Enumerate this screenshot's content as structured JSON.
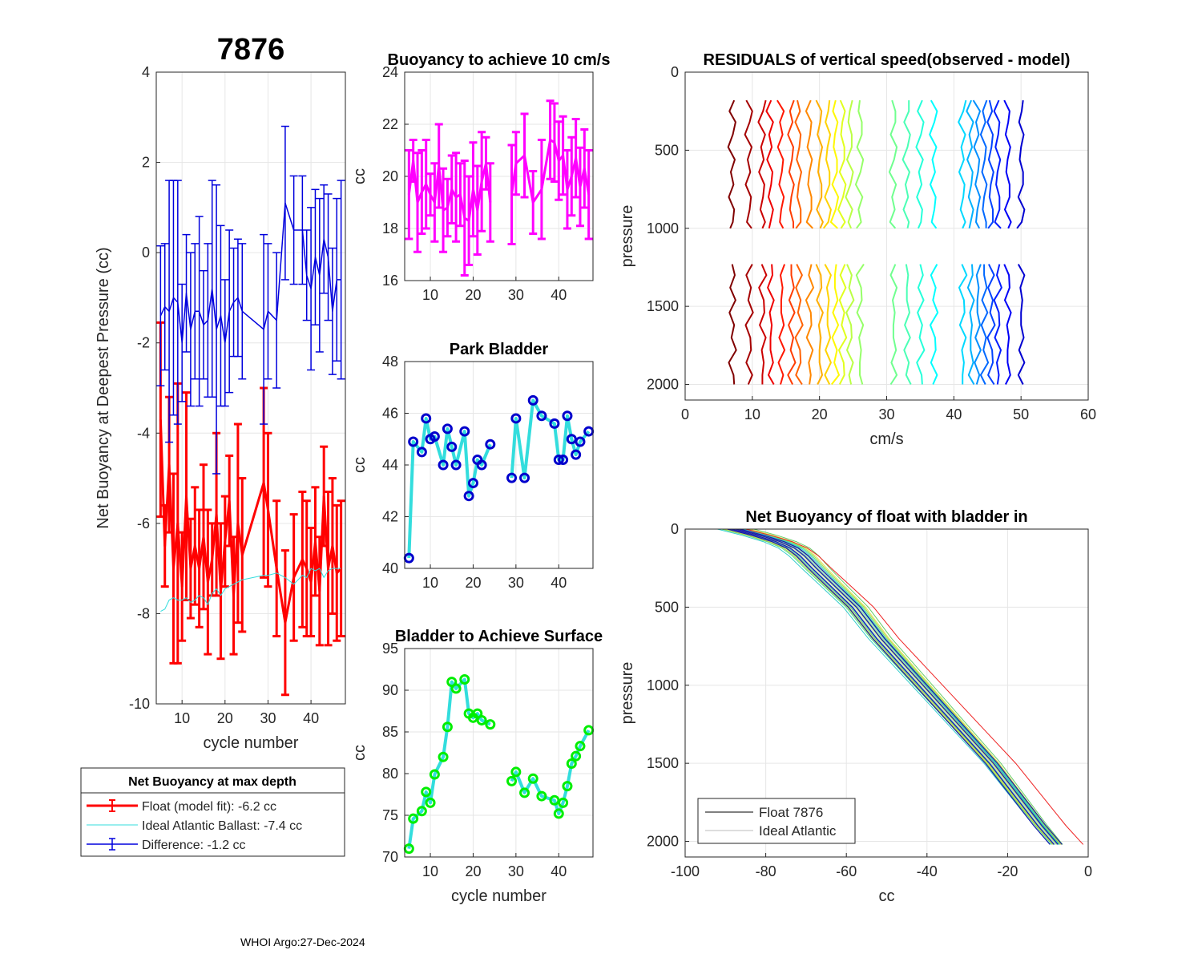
{
  "figure_title": "7876",
  "footer": "WHOI Argo:27-Dec-2024",
  "legend_box": {
    "title": "Net Buoyancy at max depth",
    "entries": [
      {
        "label": "Float (model fit):  -6.2 cc",
        "color": "#ff0000"
      },
      {
        "label": "Ideal Atlantic Ballast:  -7.4 cc",
        "color": "#33dddd"
      },
      {
        "label": "Difference:  -1.2 cc",
        "color": "#0000dd"
      }
    ]
  },
  "colors": {
    "red": "#ff0000",
    "blue": "#0000dd",
    "cyan": "#33dddd",
    "magenta": "#ff00ff",
    "green": "#00ee00",
    "navy": "#0000cc",
    "grid": "#e6e6e6"
  },
  "chart_data": [
    {
      "id": "net-buoyancy",
      "type": "line",
      "title": "",
      "xlabel": "cycle number",
      "ylabel": "Net Buoyancy at Deepest Pressure (cc)",
      "xlim": [
        4,
        48
      ],
      "ylim": [
        -10,
        4
      ],
      "xticks": [
        10,
        20,
        30,
        40
      ],
      "yticks": [
        -10,
        -8,
        -6,
        -4,
        -2,
        0,
        2,
        4
      ],
      "x": [
        5,
        6,
        7,
        8,
        9,
        10,
        11,
        12,
        13,
        14,
        15,
        16,
        17,
        18,
        19,
        20,
        21,
        22,
        23,
        24,
        29,
        30,
        32,
        34,
        36,
        38,
        39,
        40,
        41,
        42,
        43,
        44,
        45,
        46,
        47
      ],
      "series": [
        {
          "name": "Float (model fit)",
          "color": "#ff0000",
          "values": [
            -3.7,
            -6.5,
            -4.7,
            -7.0,
            -6.0,
            -7.4,
            -5.4,
            -7.0,
            -6.5,
            -7.0,
            -6.3,
            -7.3,
            -6.8,
            -5.8,
            -7.5,
            -6.4,
            -5.5,
            -7.6,
            -6.0,
            -6.7,
            -5.1,
            -5.7,
            -7.0,
            -8.2,
            -7.2,
            -6.8,
            -7.0,
            -7.3,
            -6.4,
            -7.5,
            -5.4,
            -7.0,
            -6.5,
            -7.1,
            -7.0
          ],
          "err": [
            2.15,
            0.9,
            1.5,
            2.1,
            3.1,
            1.2,
            2.3,
            1.1,
            1.3,
            1.3,
            1.6,
            1.6,
            0.8,
            1.8,
            1.5,
            1.0,
            1.0,
            1.3,
            2.2,
            1.7,
            2.1,
            1.7,
            1.5,
            1.6,
            1.4,
            1.5,
            1.5,
            1.2,
            1.2,
            1.2,
            1.1,
            1.7,
            1.5,
            1.5,
            1.5
          ]
        },
        {
          "name": "Ideal Atlantic Ballast",
          "color": "#33dddd",
          "values": [
            -7.95,
            -7.9,
            -7.7,
            -7.65,
            -7.7,
            -7.7,
            -7.65,
            -7.75,
            -7.7,
            -7.6,
            -7.65,
            -7.8,
            -7.55,
            -7.45,
            -7.6,
            -7.45,
            -7.4,
            -7.35,
            -7.3,
            -7.25,
            -7.15,
            -7.15,
            -7.1,
            -7.2,
            -7.35,
            -7.15,
            -7.2,
            -7.0,
            -7.05,
            -7.0,
            -7.2,
            -7.05,
            -7.0,
            -7.0,
            -7.0
          ]
        },
        {
          "name": "Difference",
          "color": "#0000dd",
          "values": [
            -1.4,
            -1.2,
            -1.3,
            -1.0,
            -1.1,
            -2.0,
            -0.9,
            -1.7,
            -1.3,
            -1.3,
            -1.6,
            -1.5,
            -0.8,
            -1.7,
            -1.4,
            -2.0,
            -1.3,
            -1.1,
            -1.0,
            -1.3,
            -1.7,
            -1.3,
            -1.5,
            1.1,
            0.5,
            0.5,
            -0.5,
            -0.8,
            -0.1,
            -0.5,
            0.3,
            -0.1,
            -1.3,
            -0.6,
            -0.6
          ],
          "err": [
            1.55,
            1.4,
            2.9,
            2.6,
            2.7,
            1.3,
            1.3,
            1.7,
            1.5,
            2.1,
            1.2,
            1.7,
            2.4,
            3.2,
            2.0,
            1.4,
            1.8,
            1.2,
            1.3,
            1.5,
            2.1,
            1.5,
            1.5,
            1.7,
            1.2,
            1.2,
            1.0,
            1.8,
            1.5,
            1.7,
            1.2,
            1.4,
            1.4,
            1.8,
            2.2
          ]
        }
      ]
    },
    {
      "id": "buoyancy-10cms",
      "type": "line",
      "title": "Buoyancy to achieve 10 cm/s",
      "xlabel": "",
      "ylabel": "cc",
      "xlim": [
        4,
        48
      ],
      "ylim": [
        16,
        24
      ],
      "xticks": [
        10,
        20,
        30,
        40
      ],
      "yticks": [
        16,
        18,
        20,
        22,
        24
      ],
      "x": [
        5,
        6,
        7,
        8,
        9,
        10,
        11,
        12,
        13,
        14,
        15,
        16,
        17,
        18,
        19,
        20,
        21,
        22,
        23,
        24,
        29,
        30,
        32,
        34,
        36,
        38,
        39,
        40,
        41,
        42,
        43,
        44,
        45,
        46,
        47
      ],
      "values": [
        19.3,
        20.6,
        19.0,
        19.4,
        19.7,
        19.3,
        19.0,
        20.4,
        18.7,
        18.8,
        19.5,
        19.2,
        19.3,
        18.4,
        18.3,
        19.5,
        18.7,
        19.8,
        20.5,
        19.0,
        19.3,
        20.5,
        20.8,
        19.0,
        19.5,
        21.4,
        21.3,
        20.6,
        20.8,
        19.5,
        20.0,
        20.7,
        19.6,
        20.3,
        19.3
      ],
      "err": [
        1.7,
        0.8,
        1.9,
        1.6,
        1.7,
        0.8,
        1.5,
        1.6,
        1.6,
        1.1,
        1.3,
        1.7,
        1.2,
        2.2,
        1.7,
        1.8,
        1.7,
        1.9,
        1.0,
        1.5,
        1.9,
        1.2,
        1.6,
        1.2,
        1.9,
        1.5,
        1.5,
        1.5,
        1.5,
        1.5,
        1.5,
        1.5,
        1.5,
        1.5,
        1.7
      ]
    },
    {
      "id": "park-bladder",
      "type": "line",
      "title": "Park Bladder",
      "xlabel": "",
      "ylabel": "cc",
      "xlim": [
        4,
        48
      ],
      "ylim": [
        40,
        48
      ],
      "xticks": [
        10,
        20,
        30,
        40
      ],
      "yticks": [
        40,
        42,
        44,
        46,
        48
      ],
      "x": [
        5,
        6,
        8,
        9,
        10,
        11,
        13,
        14,
        15,
        16,
        18,
        19,
        20,
        21,
        22,
        24,
        29,
        30,
        32,
        34,
        36,
        39,
        40,
        41,
        42,
        43,
        44,
        45,
        47
      ],
      "values": [
        40.4,
        44.9,
        44.5,
        45.8,
        45.0,
        45.1,
        44.0,
        45.4,
        44.7,
        44.0,
        45.3,
        42.8,
        43.3,
        44.2,
        44.0,
        44.8,
        43.5,
        45.8,
        43.5,
        46.5,
        45.9,
        45.6,
        44.2,
        44.2,
        45.9,
        45.0,
        44.4,
        44.9,
        45.3
      ]
    },
    {
      "id": "bladder-surface",
      "type": "line",
      "title": "Bladder to Achieve Surface",
      "xlabel": "cycle number",
      "ylabel": "cc",
      "xlim": [
        4,
        48
      ],
      "ylim": [
        70,
        95
      ],
      "xticks": [
        10,
        20,
        30,
        40
      ],
      "yticks": [
        70,
        75,
        80,
        85,
        90,
        95
      ],
      "x": [
        5,
        6,
        8,
        9,
        10,
        11,
        13,
        14,
        15,
        16,
        18,
        19,
        20,
        21,
        22,
        24,
        29,
        30,
        32,
        34,
        36,
        39,
        40,
        41,
        42,
        43,
        44,
        45,
        47
      ],
      "values": [
        71.0,
        74.6,
        75.5,
        77.8,
        76.5,
        79.9,
        82.0,
        85.6,
        91.0,
        90.2,
        91.3,
        87.2,
        86.7,
        87.2,
        86.4,
        85.9,
        79.1,
        80.2,
        77.7,
        79.4,
        77.3,
        76.8,
        75.2,
        76.5,
        78.5,
        81.2,
        82.1,
        83.3,
        85.2
      ]
    },
    {
      "id": "residuals",
      "type": "line",
      "title": "RESIDUALS of vertical speed(observed - model)",
      "xlabel": "cm/s",
      "ylabel": "pressure",
      "xlim": [
        0,
        60
      ],
      "ylim": [
        2100,
        0
      ],
      "xticks": [
        0,
        10,
        20,
        30,
        40,
        50,
        60
      ],
      "yticks": [
        0,
        500,
        1000,
        1500,
        2000
      ],
      "offsets": [
        7,
        9.5,
        11.5,
        12.7,
        14.3,
        15.8,
        16.9,
        18.5,
        20,
        21.2,
        22.3,
        23.4,
        24.5,
        26,
        31,
        33,
        35,
        37,
        41.3,
        42.5,
        43.5,
        44.5,
        45.5,
        46.5,
        48,
        50
      ],
      "profile_offsets_upper_cms": [
        0.3,
        -0.4,
        0.5,
        0.1,
        -0.6,
        0.4,
        -0.2,
        0.2,
        -0.5,
        0.3,
        0.1,
        -0.3,
        0.4,
        0.0,
        -0.2,
        0.3
      ],
      "profile_offsets_lower_cms": [
        0.0,
        0.4,
        -0.3,
        0.5,
        -0.4,
        0.3,
        -0.1,
        0.6,
        -0.5,
        0.2,
        0.3,
        -0.4,
        0.5,
        -0.1,
        0.2,
        0.0
      ],
      "depths_upper": [
        180,
        250,
        320,
        400,
        480,
        560,
        640,
        720,
        800,
        880,
        960,
        1000
      ],
      "depths_lower": [
        1230,
        1300,
        1380,
        1460,
        1540,
        1620,
        1700,
        1780,
        1860,
        1940,
        2000
      ]
    },
    {
      "id": "net-buoyancy-bladder",
      "type": "line",
      "title": "Net Buoyancy of float with bladder in",
      "xlabel": "cc",
      "ylabel": "pressure",
      "xlim": [
        -100,
        0
      ],
      "ylim": [
        2100,
        0
      ],
      "xticks": [
        -100,
        -80,
        -60,
        -40,
        -20,
        0
      ],
      "yticks": [
        0,
        500,
        1000,
        1500,
        2000
      ],
      "ideal_curve": {
        "p": [
          0,
          40,
          80,
          120,
          170,
          250,
          350,
          500,
          700,
          900,
          1100,
          1300,
          1500,
          1700,
          1900,
          2020
        ],
        "x": [
          -88,
          -82,
          -77,
          -73.5,
          -71,
          -68,
          -64,
          -58,
          -52,
          -45,
          -38,
          -31,
          -24,
          -18,
          -12,
          -8
        ]
      },
      "legend": [
        "Float 7876",
        "Ideal Atlantic"
      ],
      "legend_colors": [
        "#000000",
        "#bbbbbb"
      ]
    }
  ]
}
